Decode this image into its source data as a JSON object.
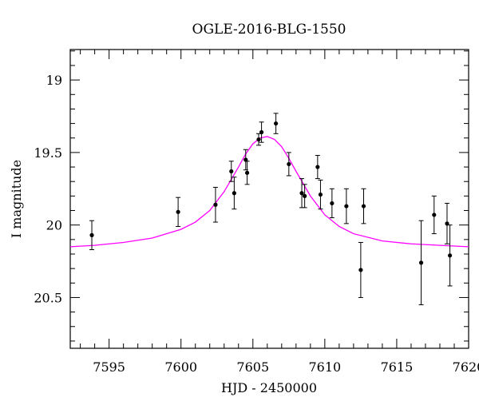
{
  "chart_data": {
    "type": "scatter",
    "title": "OGLE-2016-BLG-1550",
    "xlabel": "HJD - 2450000",
    "ylabel": "I magnitude",
    "xlim": [
      7592.3,
      7620
    ],
    "ylim": [
      20.85,
      18.79
    ],
    "y_inverted": true,
    "x_major_ticks": [
      7595,
      7600,
      7605,
      7610,
      7615,
      7620
    ],
    "x_tick_labels": [
      "7595",
      "7600",
      "7605",
      "7610",
      "7615",
      "7620"
    ],
    "y_major_ticks": [
      19,
      19.5,
      20,
      20.5
    ],
    "y_tick_labels": [
      "19",
      "19.5",
      "20",
      "20.5"
    ],
    "grid": false,
    "marker_color": "#000000",
    "fit_color": "#ff00ff",
    "points": [
      {
        "x": 7593.8,
        "y": 20.07,
        "err": 0.1
      },
      {
        "x": 7599.8,
        "y": 19.91,
        "err": 0.1
      },
      {
        "x": 7602.4,
        "y": 19.86,
        "err": 0.12
      },
      {
        "x": 7603.5,
        "y": 19.63,
        "err": 0.07
      },
      {
        "x": 7603.7,
        "y": 19.78,
        "err": 0.11
      },
      {
        "x": 7604.5,
        "y": 19.55,
        "err": 0.07
      },
      {
        "x": 7604.6,
        "y": 19.64,
        "err": 0.08
      },
      {
        "x": 7605.4,
        "y": 19.41,
        "err": 0.04
      },
      {
        "x": 7605.6,
        "y": 19.36,
        "err": 0.07
      },
      {
        "x": 7606.6,
        "y": 19.3,
        "err": 0.07
      },
      {
        "x": 7607.5,
        "y": 19.58,
        "err": 0.08
      },
      {
        "x": 7608.4,
        "y": 19.78,
        "err": 0.1
      },
      {
        "x": 7608.6,
        "y": 19.8,
        "err": 0.08
      },
      {
        "x": 7609.5,
        "y": 19.6,
        "err": 0.08
      },
      {
        "x": 7609.7,
        "y": 19.79,
        "err": 0.1
      },
      {
        "x": 7610.5,
        "y": 19.85,
        "err": 0.1
      },
      {
        "x": 7611.5,
        "y": 19.87,
        "err": 0.12
      },
      {
        "x": 7612.5,
        "y": 20.31,
        "err": 0.19
      },
      {
        "x": 7612.7,
        "y": 19.87,
        "err": 0.12
      },
      {
        "x": 7616.7,
        "y": 20.26,
        "err": 0.29
      },
      {
        "x": 7617.6,
        "y": 19.93,
        "err": 0.13
      },
      {
        "x": 7618.5,
        "y": 19.99,
        "err": 0.14
      },
      {
        "x": 7618.7,
        "y": 20.21,
        "err": 0.21
      }
    ],
    "model_curve": {
      "x": [
        7592.3,
        7594,
        7596,
        7598,
        7600,
        7601,
        7602,
        7603,
        7604,
        7604.5,
        7605,
        7605.5,
        7606,
        7606.5,
        7607,
        7607.5,
        7608,
        7609,
        7610,
        7611,
        7612,
        7614,
        7616,
        7618,
        7620
      ],
      "y": [
        20.15,
        20.14,
        20.12,
        20.09,
        20.03,
        19.98,
        19.9,
        19.77,
        19.6,
        19.51,
        19.44,
        19.4,
        19.39,
        19.41,
        19.46,
        19.54,
        19.63,
        19.8,
        19.93,
        20.01,
        20.06,
        20.11,
        20.13,
        20.14,
        20.15
      ]
    }
  }
}
